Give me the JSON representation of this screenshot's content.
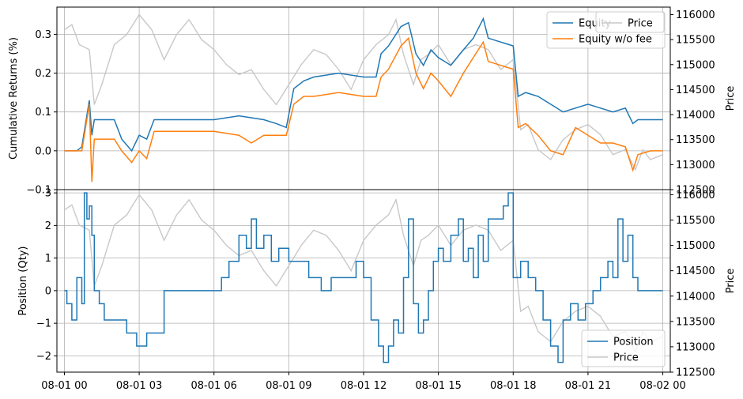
{
  "chart_data": [
    {
      "type": "line",
      "ylabel": "Cumulative Returns (%)",
      "ylabel_right": "Price",
      "ylim": [
        -0.1,
        0.37
      ],
      "yticks": [
        -0.1,
        0.0,
        0.1,
        0.2,
        0.3
      ],
      "ytick_labels": [
        "−0.1",
        "0.0",
        "0.1",
        "0.2",
        "0.3"
      ],
      "ylim_right": [
        112500,
        116150
      ],
      "yticks_right": [
        112500,
        113000,
        113500,
        114000,
        114500,
        115000,
        115500,
        116000
      ],
      "ytick_labels_right": [
        "112500",
        "113000",
        "113500",
        "114000",
        "114500",
        "115000",
        "115500",
        "116000"
      ],
      "grid": true,
      "legend_left": {
        "placement": "top-right",
        "entries": [
          "Equity",
          "Equity w/o fee"
        ]
      },
      "legend_right": {
        "placement": "top-right",
        "entries": [
          "Price"
        ]
      },
      "colors": {
        "equity": "#1f77b4",
        "equity_wo_fee": "#ff7f0e",
        "price": "#c8c8c8"
      },
      "series": [
        {
          "name": "Equity",
          "axis": "left",
          "x": [
            0,
            0.5,
            0.7,
            1.0,
            1.1,
            1.2,
            1.5,
            2.0,
            2.3,
            2.7,
            3.0,
            3.3,
            3.6,
            4.0,
            5.0,
            6.0,
            7.0,
            8.0,
            8.5,
            8.9,
            9.2,
            9.6,
            10.0,
            11.0,
            12.0,
            12.5,
            12.7,
            13.0,
            13.5,
            13.8,
            14.1,
            14.4,
            14.7,
            15.0,
            15.5,
            16.0,
            16.4,
            16.8,
            17.0,
            17.5,
            18.0,
            18.2,
            18.5,
            19.0,
            19.5,
            20.0,
            20.5,
            21.0,
            21.5,
            22.0,
            22.5,
            22.8,
            23.0,
            23.5,
            24.0
          ],
          "y": [
            0.0,
            0.0,
            0.01,
            0.13,
            0.04,
            0.08,
            0.08,
            0.08,
            0.03,
            0.0,
            0.04,
            0.03,
            0.08,
            0.08,
            0.08,
            0.08,
            0.09,
            0.08,
            0.07,
            0.06,
            0.16,
            0.18,
            0.19,
            0.2,
            0.19,
            0.19,
            0.25,
            0.27,
            0.32,
            0.33,
            0.25,
            0.22,
            0.26,
            0.24,
            0.22,
            0.26,
            0.29,
            0.34,
            0.29,
            0.28,
            0.27,
            0.14,
            0.15,
            0.14,
            0.12,
            0.1,
            0.11,
            0.12,
            0.11,
            0.1,
            0.11,
            0.07,
            0.08,
            0.08,
            0.08
          ]
        },
        {
          "name": "Equity w/o fee",
          "axis": "left",
          "x": [
            0,
            0.5,
            0.7,
            1.0,
            1.1,
            1.2,
            1.5,
            2.0,
            2.3,
            2.7,
            3.0,
            3.3,
            3.6,
            4.0,
            5.0,
            6.0,
            7.0,
            7.5,
            8.0,
            8.5,
            8.9,
            9.2,
            9.6,
            10.0,
            11.0,
            12.0,
            12.5,
            12.7,
            13.0,
            13.5,
            13.8,
            14.1,
            14.4,
            14.7,
            15.0,
            15.5,
            16.0,
            16.4,
            16.8,
            17.0,
            17.5,
            18.0,
            18.2,
            18.5,
            19.0,
            19.5,
            20.0,
            20.5,
            21.0,
            21.5,
            22.0,
            22.5,
            22.8,
            23.0,
            23.5,
            24.0
          ],
          "y": [
            0.0,
            0.0,
            0.0,
            0.12,
            -0.08,
            0.03,
            0.03,
            0.03,
            0.0,
            -0.03,
            0.0,
            -0.02,
            0.05,
            0.05,
            0.05,
            0.05,
            0.04,
            0.02,
            0.04,
            0.04,
            0.04,
            0.12,
            0.14,
            0.14,
            0.15,
            0.14,
            0.14,
            0.19,
            0.21,
            0.27,
            0.29,
            0.2,
            0.16,
            0.2,
            0.18,
            0.14,
            0.2,
            0.24,
            0.28,
            0.23,
            0.22,
            0.21,
            0.06,
            0.07,
            0.04,
            0.0,
            -0.01,
            0.06,
            0.04,
            0.02,
            0.02,
            0.01,
            -0.05,
            -0.01,
            0.0,
            0.0
          ]
        },
        {
          "name": "Price",
          "axis": "right",
          "x": [
            0,
            0.3,
            0.6,
            1.0,
            1.2,
            1.5,
            2.0,
            2.5,
            3.0,
            3.5,
            4.0,
            4.5,
            5.0,
            5.5,
            6.0,
            6.5,
            7.0,
            7.5,
            8.0,
            8.5,
            9.0,
            9.5,
            10.0,
            10.5,
            11.0,
            11.5,
            12.0,
            12.5,
            13.0,
            13.3,
            13.6,
            14.0,
            14.3,
            14.6,
            15.0,
            15.5,
            16.0,
            16.5,
            17.0,
            17.5,
            18.0,
            18.3,
            18.6,
            19.0,
            19.5,
            20.0,
            20.5,
            21.0,
            21.5,
            22.0,
            22.5,
            22.9,
            23.2,
            23.5,
            24.0
          ],
          "y": [
            115700,
            115800,
            115400,
            115300,
            114200,
            114600,
            115400,
            115600,
            116000,
            115700,
            115100,
            115600,
            115900,
            115500,
            115300,
            115000,
            114800,
            114900,
            114500,
            114200,
            114600,
            115000,
            115300,
            115200,
            114900,
            114500,
            115100,
            115400,
            115600,
            115900,
            115200,
            114600,
            115100,
            115200,
            115400,
            115000,
            115300,
            115400,
            115300,
            114900,
            115100,
            113700,
            113800,
            113300,
            113100,
            113500,
            113700,
            113800,
            113600,
            113200,
            113300,
            112900,
            113300,
            113100,
            113200
          ]
        }
      ]
    },
    {
      "type": "line",
      "xlabel": "",
      "ylabel": "Position (Qty)",
      "ylabel_right": "Price",
      "ylim": [
        -2.5,
        3.1
      ],
      "yticks": [
        -2,
        -1,
        0,
        1,
        2,
        3
      ],
      "ytick_labels": [
        "−2",
        "−1",
        "0",
        "1",
        "2",
        "3"
      ],
      "ylim_right": [
        112500,
        116100
      ],
      "yticks_right": [
        112500,
        113000,
        113500,
        114000,
        114500,
        115000,
        115500,
        116000
      ],
      "ytick_labels_right": [
        "112500",
        "113000",
        "113500",
        "114000",
        "114500",
        "115000",
        "115500",
        "116000"
      ],
      "xlim": [
        -0.3,
        24.3
      ],
      "xticks": [
        0,
        3,
        6,
        9,
        12,
        15,
        18,
        21,
        24
      ],
      "xtick_labels": [
        "08-01 00",
        "08-01 03",
        "08-01 06",
        "08-01 09",
        "08-01 12",
        "08-01 15",
        "08-01 18",
        "08-01 21",
        "08-02 00"
      ],
      "grid": true,
      "legend": {
        "placement": "bottom-right",
        "entries": [
          "Position",
          "Price"
        ]
      },
      "colors": {
        "position": "#1f77b4",
        "price": "#c8c8c8"
      },
      "series": [
        {
          "name": "Position",
          "axis": "left",
          "step": true,
          "x": [
            0,
            0.1,
            0.3,
            0.5,
            0.7,
            0.8,
            0.9,
            1.0,
            1.1,
            1.2,
            1.4,
            1.6,
            1.9,
            2.5,
            2.9,
            3.3,
            3.7,
            4.0,
            5.0,
            6.0,
            6.3,
            6.6,
            7.0,
            7.3,
            7.5,
            7.7,
            8.0,
            8.3,
            8.6,
            9.0,
            9.3,
            9.8,
            10.3,
            10.7,
            11.2,
            11.7,
            12.0,
            12.3,
            12.6,
            12.8,
            13.0,
            13.2,
            13.4,
            13.6,
            13.8,
            14.0,
            14.2,
            14.4,
            14.6,
            14.8,
            15.0,
            15.2,
            15.5,
            15.8,
            16.0,
            16.2,
            16.4,
            16.6,
            16.8,
            17.0,
            17.3,
            17.6,
            17.8,
            18.0,
            18.3,
            18.6,
            18.9,
            19.2,
            19.5,
            19.8,
            20.0,
            20.3,
            20.6,
            20.9,
            21.2,
            21.5,
            21.8,
            22.0,
            22.2,
            22.4,
            22.6,
            22.8,
            23.0,
            24.0
          ],
          "y": [
            0,
            -0.4,
            -0.9,
            0.4,
            -0.4,
            3.0,
            2.2,
            2.6,
            1.7,
            0,
            -0.4,
            -0.9,
            -0.9,
            -1.3,
            -1.7,
            -1.3,
            -1.3,
            0,
            0,
            0,
            0.4,
            0.9,
            1.7,
            1.3,
            2.2,
            1.3,
            1.7,
            0.9,
            1.3,
            0.9,
            0.9,
            0.4,
            0,
            0.4,
            0.4,
            0.9,
            0.4,
            -0.9,
            -1.7,
            -2.2,
            -1.7,
            -0.9,
            -1.3,
            0.4,
            2.2,
            -0.4,
            -1.3,
            -0.9,
            0,
            0.9,
            1.3,
            0.9,
            1.7,
            2.2,
            0.9,
            1.3,
            0.4,
            1.7,
            0.9,
            2.2,
            2.2,
            2.6,
            3.0,
            0.4,
            0.9,
            0.4,
            0,
            -0.9,
            -1.7,
            -2.2,
            -0.9,
            -0.4,
            -0.9,
            -0.4,
            0,
            0.4,
            0.9,
            0.4,
            2.2,
            0.9,
            1.7,
            0.4,
            0,
            0
          ]
        },
        {
          "name": "Price",
          "axis": "right",
          "x": [
            0,
            0.3,
            0.6,
            1.0,
            1.2,
            1.5,
            2.0,
            2.5,
            3.0,
            3.5,
            4.0,
            4.5,
            5.0,
            5.5,
            6.0,
            6.5,
            7.0,
            7.5,
            8.0,
            8.5,
            9.0,
            9.5,
            10.0,
            10.5,
            11.0,
            11.5,
            12.0,
            12.5,
            13.0,
            13.3,
            13.6,
            14.0,
            14.3,
            14.6,
            15.0,
            15.5,
            16.0,
            16.5,
            17.0,
            17.5,
            18.0,
            18.3,
            18.6,
            19.0,
            19.5,
            20.0,
            20.5,
            21.0,
            21.5,
            22.0,
            22.5,
            22.9,
            23.2,
            23.5,
            24.0
          ],
          "y": [
            115700,
            115800,
            115400,
            115300,
            114200,
            114600,
            115400,
            115600,
            116000,
            115700,
            115100,
            115600,
            115900,
            115500,
            115300,
            115000,
            114800,
            114900,
            114500,
            114200,
            114600,
            115000,
            115300,
            115200,
            114900,
            114500,
            115100,
            115400,
            115600,
            115900,
            115200,
            114600,
            115100,
            115200,
            115400,
            115000,
            115300,
            115400,
            115300,
            114900,
            115100,
            113700,
            113800,
            113300,
            113100,
            113500,
            113700,
            113800,
            113600,
            113200,
            113300,
            112900,
            113300,
            113100,
            113200
          ]
        }
      ]
    }
  ]
}
